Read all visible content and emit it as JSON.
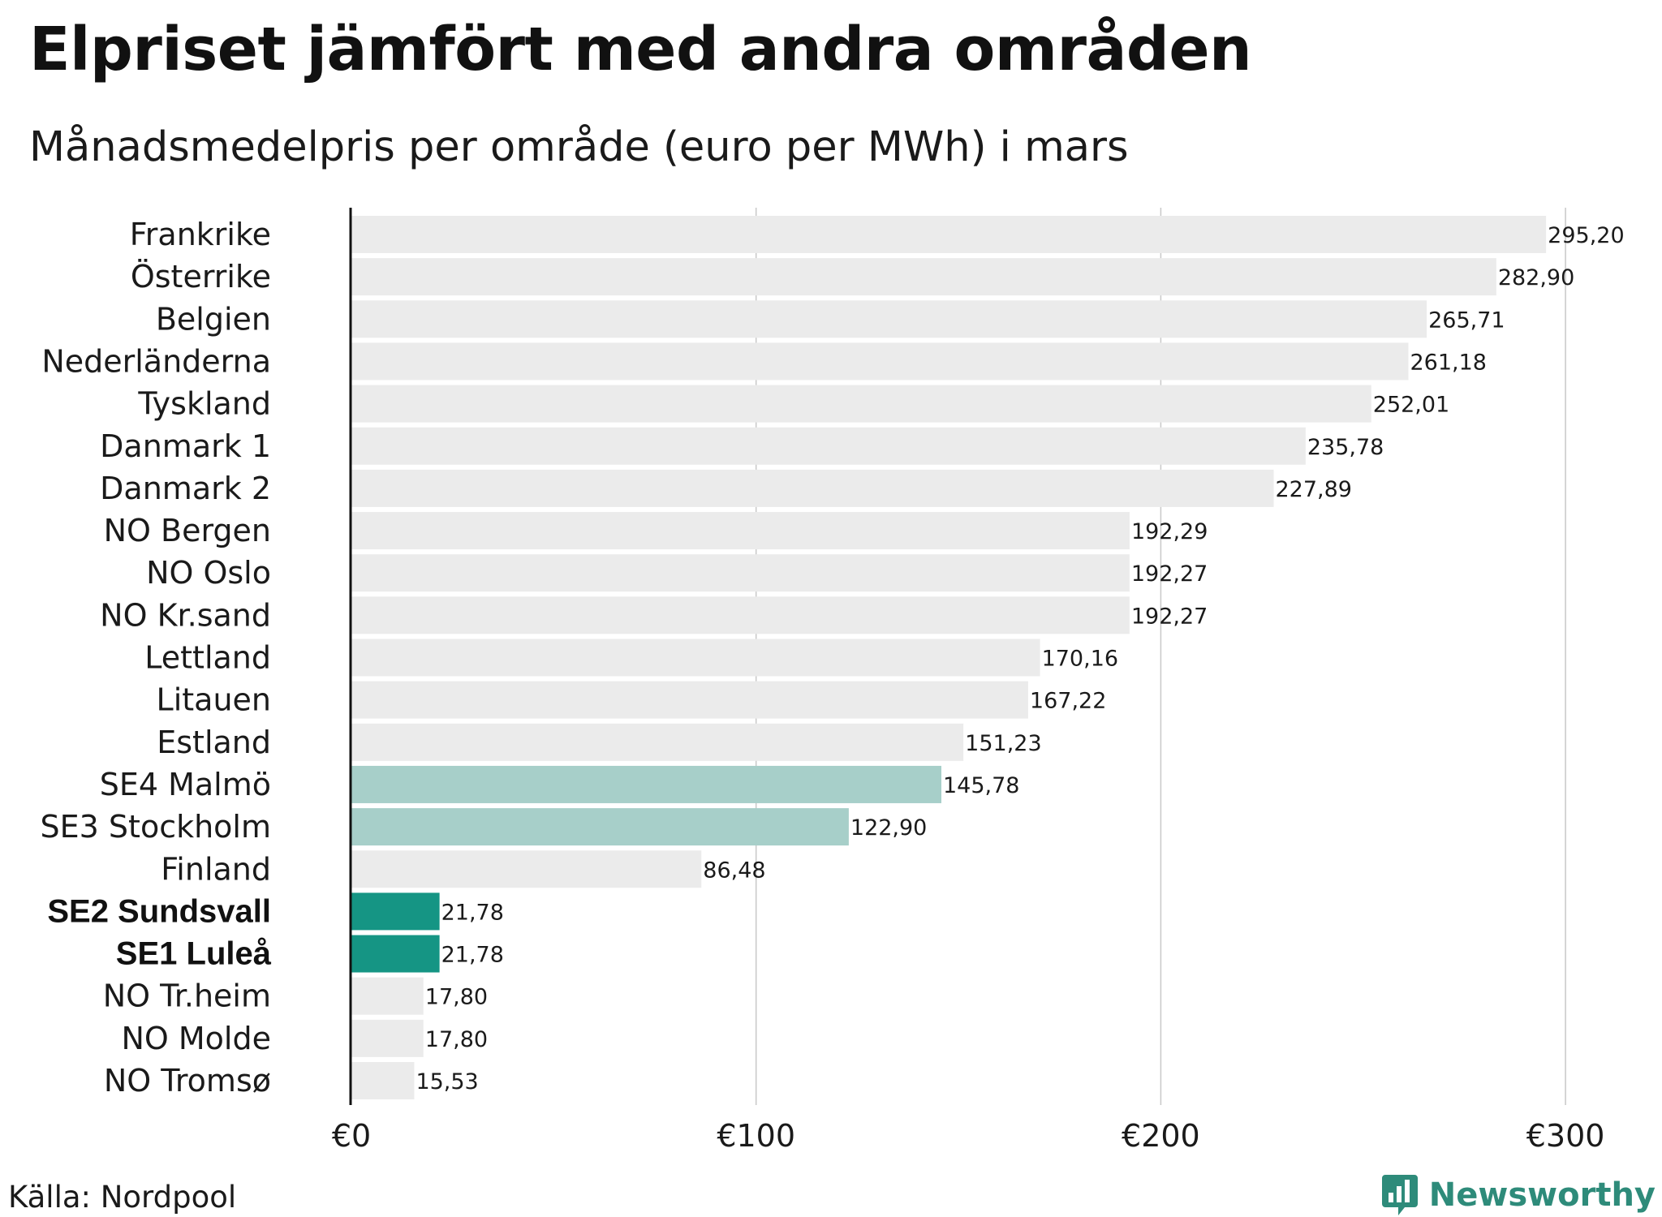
{
  "title": "Elpriset jämfört med andra områden",
  "subtitle": "Månadsmedelpris per område (euro per MWh) i mars",
  "source": "Källa: Nordpool",
  "brand": {
    "name": "Newsworthy",
    "icon": "bar-chart-icon"
  },
  "colors": {
    "default_bar": "#ebebeb",
    "light_highlight": "#a7cfc9",
    "dark_highlight": "#159584",
    "grid": "#c8c8c8",
    "axis": "#111111",
    "brand": "#2e8b7a"
  },
  "chart_data": {
    "type": "bar",
    "orientation": "horizontal",
    "title": "Elpriset jämfört med andra områden",
    "subtitle": "Månadsmedelpris per område (euro per MWh) i mars",
    "xlabel": "",
    "ylabel": "",
    "xlim": [
      0,
      310
    ],
    "grid": true,
    "ticks": [
      {
        "value": 0,
        "label": "€0"
      },
      {
        "value": 100,
        "label": "€100"
      },
      {
        "value": 200,
        "label": "€200"
      },
      {
        "value": 300,
        "label": "€300"
      }
    ],
    "categories": [
      "Frankrike",
      "Österrike",
      "Belgien",
      "Nederländerna",
      "Tyskland",
      "Danmark 1",
      "Danmark 2",
      "NO Bergen",
      "NO Oslo",
      "NO Kr.sand",
      "Lettland",
      "Litauen",
      "Estland",
      "SE4 Malmö",
      "SE3 Stockholm",
      "Finland",
      "SE2 Sundsvall",
      "SE1 Luleå",
      "NO Tr.heim",
      "NO Molde",
      "NO Tromsø"
    ],
    "values": [
      295.2,
      282.9,
      265.71,
      261.18,
      252.01,
      235.78,
      227.89,
      192.29,
      192.27,
      192.27,
      170.16,
      167.22,
      151.23,
      145.78,
      122.9,
      86.48,
      21.78,
      21.78,
      17.8,
      17.8,
      15.53
    ],
    "value_labels": [
      "295,20",
      "282,90",
      "265,71",
      "261,18",
      "252,01",
      "235,78",
      "227,89",
      "192,29",
      "192,27",
      "192,27",
      "170,16",
      "167,22",
      "151,23",
      "145,78",
      "122,90",
      "86,48",
      "21,78",
      "21,78",
      "17,80",
      "17,80",
      "15,53"
    ],
    "highlight": [
      "none",
      "none",
      "none",
      "none",
      "none",
      "none",
      "none",
      "none",
      "none",
      "none",
      "none",
      "none",
      "none",
      "light",
      "light",
      "none",
      "dark",
      "dark",
      "none",
      "none",
      "none"
    ]
  }
}
